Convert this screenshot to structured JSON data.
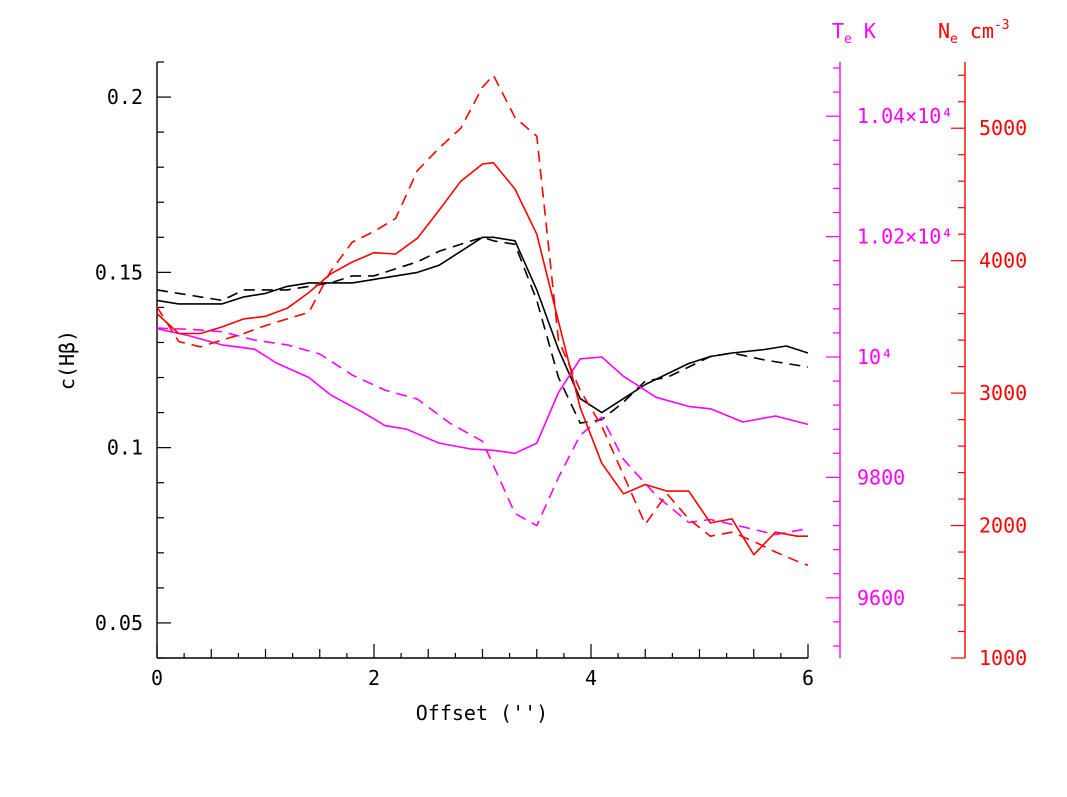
{
  "chart_data": {
    "type": "line",
    "xlabel": "Offset ('')",
    "ylabel": "c(Hβ)",
    "x_range": [
      0,
      6
    ],
    "axes": {
      "left": {
        "label": "c(Hβ)",
        "range": [
          0.04,
          0.21
        ],
        "ticks": [
          "0.05",
          "0.1",
          "0.15",
          "0.2"
        ],
        "color": "#000000"
      },
      "middle": {
        "label_main": "T",
        "label_sub": "e",
        "label_unit": "K",
        "range": [
          9500,
          10490
        ],
        "ticks": [
          "9600",
          "9800",
          "10⁴",
          "1.02×10⁴",
          "1.04×10⁴"
        ],
        "color": "#ff00ff"
      },
      "right": {
        "label_main": "N",
        "label_sub": "e",
        "label_unit": "cm",
        "label_sup": "-3",
        "range": [
          1000,
          5500
        ],
        "ticks": [
          "1000",
          "2000",
          "3000",
          "4000",
          "5000"
        ],
        "color": "#ff0000"
      }
    },
    "x_ticks": [
      "0",
      "2",
      "4",
      "6"
    ],
    "series": [
      {
        "axis": "left",
        "color": "#000000",
        "dash": false,
        "x": [
          0,
          0.2,
          0.4,
          0.6,
          0.8,
          1.0,
          1.2,
          1.4,
          1.6,
          1.8,
          2.0,
          2.2,
          2.4,
          2.6,
          2.8,
          3.0,
          3.1,
          3.3,
          3.5,
          3.7,
          3.9,
          4.1,
          4.3,
          4.5,
          4.7,
          4.9,
          5.1,
          5.3,
          5.6,
          5.8,
          6.0
        ],
        "y": [
          0.142,
          0.141,
          0.141,
          0.141,
          0.143,
          0.144,
          0.146,
          0.147,
          0.147,
          0.147,
          0.148,
          0.149,
          0.15,
          0.152,
          0.156,
          0.16,
          0.16,
          0.159,
          0.145,
          0.128,
          0.114,
          0.11,
          0.114,
          0.118,
          0.121,
          0.124,
          0.126,
          0.127,
          0.128,
          0.129,
          0.127
        ]
      },
      {
        "axis": "left",
        "color": "#000000",
        "dash": true,
        "x": [
          0,
          0.2,
          0.4,
          0.6,
          0.8,
          1.0,
          1.2,
          1.4,
          1.6,
          1.8,
          2.0,
          2.2,
          2.4,
          2.6,
          2.8,
          3.0,
          3.1,
          3.3,
          3.5,
          3.7,
          3.9,
          4.1,
          4.3,
          4.5,
          4.7,
          4.9,
          5.1,
          5.3,
          5.6,
          5.8,
          6.0
        ],
        "y": [
          0.145,
          0.144,
          0.143,
          0.142,
          0.145,
          0.145,
          0.145,
          0.146,
          0.147,
          0.149,
          0.149,
          0.151,
          0.153,
          0.156,
          0.158,
          0.16,
          0.159,
          0.158,
          0.142,
          0.12,
          0.107,
          0.108,
          0.113,
          0.119,
          0.12,
          0.123,
          0.126,
          0.127,
          0.125,
          0.124,
          0.123
        ]
      },
      {
        "axis": "middle",
        "color": "#ff00ff",
        "dash": false,
        "x": [
          0,
          0.3,
          0.6,
          0.9,
          1.1,
          1.4,
          1.6,
          1.9,
          2.1,
          2.3,
          2.6,
          2.9,
          3.1,
          3.3,
          3.5,
          3.7,
          3.9,
          4.1,
          4.3,
          4.6,
          4.9,
          5.1,
          5.4,
          5.7,
          6.0
        ],
        "y": [
          10047,
          10035,
          10020,
          10013,
          9990,
          9966,
          9937,
          9908,
          9886,
          9880,
          9857,
          9847,
          9845,
          9840,
          9857,
          9941,
          9997,
          10000,
          9968,
          9933,
          9918,
          9914,
          9892,
          9902,
          9888
        ]
      },
      {
        "axis": "middle",
        "color": "#ff00ff",
        "dash": true,
        "x": [
          0,
          0.3,
          0.6,
          0.9,
          1.2,
          1.5,
          1.8,
          2.1,
          2.4,
          2.7,
          3.0,
          3.3,
          3.5,
          3.7,
          3.9,
          4.1,
          4.3,
          4.6,
          4.9,
          5.1,
          5.4,
          5.7,
          6.0
        ],
        "y": [
          10048,
          10046,
          10042,
          10028,
          10020,
          10005,
          9970,
          9945,
          9930,
          9890,
          9860,
          9740,
          9720,
          9800,
          9870,
          9900,
          9830,
          9770,
          9725,
          9730,
          9718,
          9705,
          9715
        ]
      },
      {
        "axis": "right",
        "color": "#ff0000",
        "dash": false,
        "x": [
          0,
          0.2,
          0.4,
          0.6,
          0.8,
          1.0,
          1.2,
          1.4,
          1.6,
          1.8,
          2.0,
          2.2,
          2.4,
          2.6,
          2.8,
          3.0,
          3.1,
          3.3,
          3.5,
          3.7,
          3.9,
          4.1,
          4.3,
          4.5,
          4.7,
          4.9,
          5.1,
          5.3,
          5.5,
          5.7,
          5.9,
          6.0
        ],
        "y": [
          3600,
          3450,
          3450,
          3500,
          3560,
          3580,
          3640,
          3760,
          3900,
          3990,
          4060,
          4050,
          4170,
          4380,
          4600,
          4730,
          4740,
          4540,
          4200,
          3540,
          2890,
          2470,
          2240,
          2310,
          2260,
          2260,
          2020,
          2050,
          1780,
          1950,
          1920,
          1920
        ]
      },
      {
        "axis": "right",
        "color": "#ff0000",
        "dash": true,
        "x": [
          0,
          0.2,
          0.4,
          0.6,
          0.8,
          1.0,
          1.2,
          1.4,
          1.6,
          1.8,
          2.0,
          2.2,
          2.4,
          2.6,
          2.8,
          3.0,
          3.1,
          3.3,
          3.5,
          3.7,
          3.9,
          4.1,
          4.3,
          4.5,
          4.7,
          4.9,
          5.1,
          5.3,
          5.5,
          5.7,
          5.9,
          6.0
        ],
        "y": [
          3650,
          3390,
          3350,
          3400,
          3450,
          3510,
          3560,
          3610,
          3920,
          4140,
          4220,
          4320,
          4680,
          4850,
          5000,
          5310,
          5400,
          5080,
          4940,
          3400,
          3020,
          2750,
          2380,
          2010,
          2240,
          2050,
          1920,
          1950,
          1880,
          1800,
          1730,
          1700
        ]
      }
    ]
  }
}
